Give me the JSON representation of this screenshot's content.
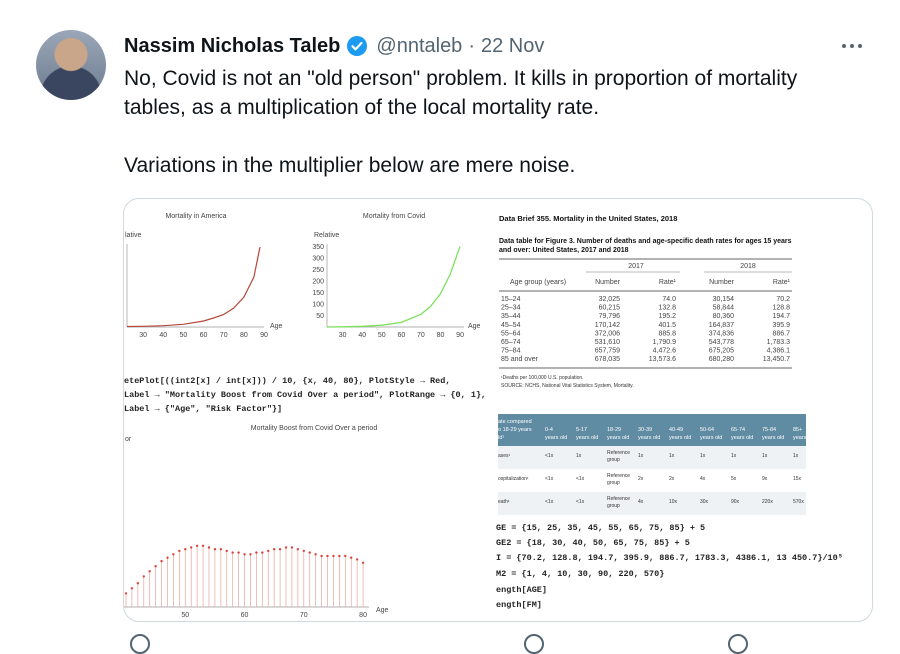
{
  "tweet": {
    "author_name": "Nassim Nicholas Taleb",
    "handle": "@nntaleb",
    "separator": "·",
    "date": "22 Nov",
    "text_p1": "No, Covid is not an \"old person\" problem. It kills in proportion of mortality tables, as a multiplication of the local mortality rate.",
    "text_p2": "Variations in the multiplier below are mere noise."
  },
  "icons": {
    "avatar": "avatar-photo",
    "verified": "verified-badge-icon",
    "more": "more-options-icon"
  },
  "colors": {
    "verified": "#1d9bf0",
    "muted": "#536471",
    "america_curve": "#b5483a",
    "covid_curve": "#7ee05f",
    "boost_points": "#d9463b",
    "table_header": "#5f8ba3"
  },
  "image": {
    "chart_america": {
      "title": "Mortality in America",
      "ylabel": "lative",
      "xlabel": "Age",
      "xticks": [
        "30",
        "40",
        "50",
        "60",
        "70",
        "80",
        "90"
      ]
    },
    "chart_covid": {
      "title": "Mortality from Covid",
      "ylabel": "Relative",
      "xlabel": "Age",
      "yticks": [
        "350",
        "300",
        "250",
        "200",
        "150",
        "100",
        "50"
      ],
      "xticks": [
        "30",
        "40",
        "50",
        "60",
        "70",
        "80",
        "90"
      ]
    },
    "code_top": [
      "etePlot[((int2[x] / int[x])) / 10, {x, 40, 80}, PlotStyle → Red,",
      "Label → \"Mortality Boost from Covid Over a period\", PlotRange → {0, 1},",
      "Label → {\"Age\", \"Risk Factor\"}]"
    ],
    "chart_boost": {
      "title": "Mortality Boost from Covid Over a period",
      "ylabel": "or",
      "xlabel": "Age",
      "xticks": [
        "50",
        "60",
        "70",
        "80"
      ]
    },
    "data_brief": {
      "title": "Data Brief 355. Mortality in the United States, 2018",
      "subtitle_1": "Data table for Figure 3. Number of deaths and age-specific death rates for ages 15 years",
      "subtitle_2": "and over: United States, 2017 and 2018",
      "year_a": "2017",
      "year_b": "2018",
      "col_age": "Age group (years)",
      "col_number": "Number",
      "col_rate": "Rate¹",
      "rows": [
        [
          "15–24",
          "32,025",
          "74.0",
          "30,154",
          "70.2"
        ],
        [
          "25–34",
          "60,215",
          "132.8",
          "58,844",
          "128.8"
        ],
        [
          "35–44",
          "79,796",
          "195.2",
          "80,360",
          "194.7"
        ],
        [
          "45–54",
          "170,142",
          "401.5",
          "164,837",
          "395.9"
        ],
        [
          "55–64",
          "372,006",
          "885.8",
          "374,836",
          "886.7"
        ],
        [
          "65–74",
          "531,610",
          "1,790.9",
          "543,778",
          "1,783.3"
        ],
        [
          "75–84",
          "657,759",
          "4,472.6",
          "675,205",
          "4,386.1"
        ],
        [
          "85 and over",
          "678,035",
          "13,573.6",
          "680,280",
          "13,450.7"
        ]
      ],
      "footnote": "¹Deaths per 100,000 U.S. population.",
      "source": "SOURCE: NCHS, National Vital Statistics System, Mortality."
    },
    "cdc_table": {
      "head_lines": [
        "ate compared",
        "o 18-29 years",
        "ld¹"
      ],
      "columns": [
        [
          "0-4",
          "years old"
        ],
        [
          "5-17",
          "years old"
        ],
        [
          "18-29",
          "years old"
        ],
        [
          "30-39",
          "years old"
        ],
        [
          "40-49",
          "years old"
        ],
        [
          "50-64",
          "years old"
        ],
        [
          "65-74",
          "years old"
        ],
        [
          "75-84",
          "years old"
        ],
        [
          "85+",
          "years old"
        ]
      ],
      "rows": [
        {
          "label": "ases¹",
          "cells": [
            "<1x",
            "1x",
            "Reference group",
            "1x",
            "1x",
            "1x",
            "1x",
            "1x",
            "1x"
          ]
        },
        {
          "label": "ospitalization¹",
          "cells": [
            "<1x",
            "<1x",
            "Reference group",
            "2x",
            "2x",
            "4x",
            "5x",
            "9x",
            "15x"
          ]
        },
        {
          "label": "eath¹",
          "cells": [
            "<1x",
            "<1x",
            "Reference group",
            "4x",
            "10x",
            "30x",
            "90x",
            "220x",
            "570x"
          ]
        }
      ]
    },
    "code_bottom": [
      "GE = {15, 25, 35, 45, 55, 65, 75, 85} + 5",
      "GE2 = {18, 30, 40, 50, 65, 75, 85} + 5",
      "I = {70.2, 128.8, 194.7, 395.9, 886.7, 1783.3, 4386.1, 13 450.7}/10⁵",
      "M2 = {1, 4, 10, 30, 90, 220, 570}",
      "ength[AGE]",
      "ength[FM]"
    ]
  },
  "chart_data": [
    {
      "type": "line",
      "title": "Mortality in America",
      "xlabel": "Age",
      "ylabel": "Relative",
      "xlim": [
        22,
        90
      ],
      "x": [
        22,
        30,
        40,
        50,
        60,
        65,
        70,
        75,
        80,
        85,
        88
      ],
      "series": [
        {
          "values": [
            1,
            1.3,
            2.6,
            5.5,
            12,
            18,
            25,
            38,
            60,
            100,
            160
          ]
        }
      ]
    },
    {
      "type": "line",
      "title": "Mortality from Covid",
      "xlabel": "Age",
      "ylabel": "Relative",
      "xlim": [
        22,
        92
      ],
      "ylim": [
        0,
        360
      ],
      "x": [
        22,
        30,
        40,
        50,
        60,
        70,
        75,
        80,
        85,
        90
      ],
      "series": [
        {
          "values": [
            0,
            1,
            3,
            8,
            20,
            55,
            90,
            145,
            230,
            350
          ]
        }
      ]
    },
    {
      "type": "scatter",
      "title": "Mortality Boost from Covid Over a period",
      "xlabel": "Age",
      "ylabel": "Risk Factor",
      "xlim": [
        40,
        81
      ],
      "ylim": [
        0,
        1
      ],
      "x": [
        40,
        41,
        42,
        43,
        44,
        45,
        46,
        47,
        48,
        49,
        50,
        51,
        52,
        53,
        54,
        55,
        56,
        57,
        58,
        59,
        60,
        61,
        62,
        63,
        64,
        65,
        66,
        67,
        68,
        69,
        70,
        71,
        72,
        73,
        74,
        75,
        76,
        77,
        78,
        79,
        80
      ],
      "series": [
        {
          "values": [
            0.08,
            0.11,
            0.14,
            0.18,
            0.21,
            0.24,
            0.27,
            0.29,
            0.31,
            0.33,
            0.34,
            0.35,
            0.36,
            0.36,
            0.35,
            0.34,
            0.34,
            0.33,
            0.32,
            0.32,
            0.31,
            0.31,
            0.32,
            0.32,
            0.33,
            0.34,
            0.34,
            0.35,
            0.35,
            0.34,
            0.33,
            0.32,
            0.31,
            0.3,
            0.3,
            0.3,
            0.3,
            0.3,
            0.29,
            0.28,
            0.26
          ]
        }
      ]
    }
  ]
}
